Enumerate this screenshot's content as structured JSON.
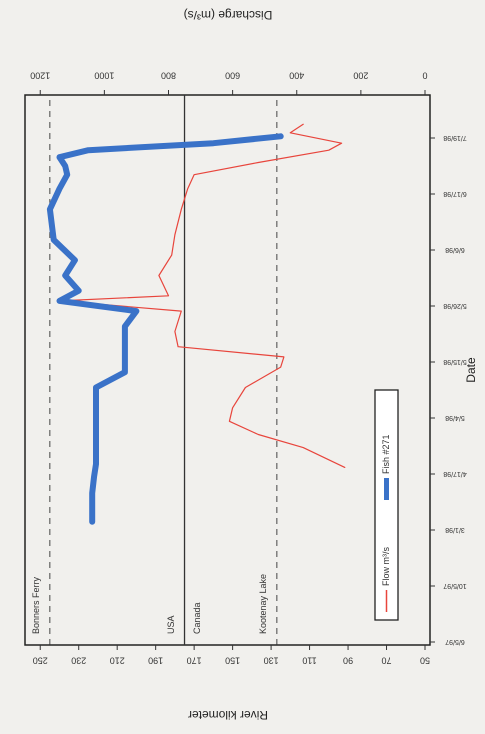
{
  "chart_data": {
    "type": "line",
    "xlabel": "Date",
    "ylabel": "River kilometer",
    "y2label": "Discharge (m³/s)",
    "xlim": [
      "6/5/97",
      "8/13/98"
    ],
    "xticks": [
      "6/5/97",
      "10/5/97",
      "3/1/98",
      "4/17/98",
      "5/4/98",
      "5/15/98",
      "5/26/98",
      "6/6/98",
      "6/17/98",
      "7/19/98"
    ],
    "ylim": [
      50,
      260
    ],
    "yticks": [
      250,
      230,
      210,
      190,
      170,
      150,
      130,
      110,
      90,
      70,
      50
    ],
    "y2lim": [
      0,
      1260
    ],
    "y2ticks": [
      1200,
      1000,
      800,
      600,
      400,
      200,
      0
    ],
    "legend": "lower left",
    "reference_lines": [
      {
        "value": 245,
        "style": "dashed",
        "labels": [
          "Bonners Ferry"
        ]
      },
      {
        "value": 175,
        "style": "solid",
        "labels": [
          "USA",
          "Canada"
        ]
      },
      {
        "value": 127,
        "style": "dashed",
        "labels": [
          "Kootenay Lake"
        ]
      }
    ],
    "series": [
      {
        "name": "Flow m³/s",
        "color": "#e8453c",
        "axis": "y2",
        "x": [
          "4/19/98",
          "4/25/98",
          "4/29/98",
          "5/3/98",
          "5/6/98",
          "5/10/98",
          "5/14/98",
          "5/16/98",
          "5/18/98",
          "5/21/98",
          "5/25/98",
          "5/27/98",
          "5/28/98",
          "6/1/98",
          "6/5/98",
          "6/9/98",
          "6/14/98",
          "6/20/98",
          "6/28/98",
          "7/5/98",
          "7/12/98",
          "7/16/98",
          "7/22/98",
          "7/27/98"
        ],
        "values": [
          250,
          380,
          520,
          610,
          600,
          560,
          450,
          440,
          770,
          780,
          760,
          1140,
          800,
          830,
          790,
          780,
          760,
          740,
          720,
          520,
          300,
          260,
          420,
          380
        ]
      },
      {
        "name": "Fish #271",
        "color": "#3a72c8",
        "axis": "y",
        "x": [
          "3/8/98",
          "4/1/98",
          "4/15/98",
          "4/20/98",
          "5/10/98",
          "5/13/98",
          "5/22/98",
          "5/25/98",
          "5/27/98",
          "5/29/98",
          "6/1/98",
          "6/4/98",
          "6/8/98",
          "6/14/98",
          "6/20/98",
          "6/28/98",
          "7/3/98",
          "7/8/98",
          "7/12/98",
          "7/16/98",
          "7/20/98"
        ],
        "values": [
          223,
          223,
          222,
          221,
          221,
          206,
          206,
          200,
          240,
          230,
          237,
          232,
          243,
          245,
          240,
          236,
          237,
          240,
          225,
          160,
          125
        ]
      }
    ]
  }
}
